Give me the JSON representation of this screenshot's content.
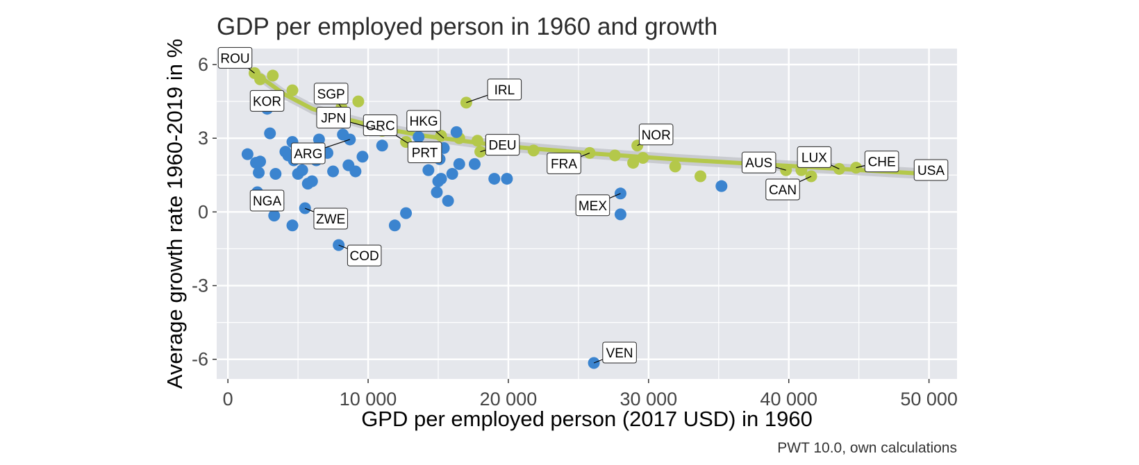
{
  "chart_data": {
    "type": "scatter",
    "title": "GDP per employed person in 1960 and growth",
    "xlabel": "GPD per employed person (2017 USD) in 1960",
    "ylabel": "Average growth rate 1960-2019 in %",
    "caption": "PWT 10.0, own calculations",
    "xlim": [
      -800,
      52000
    ],
    "ylim": [
      -6.8,
      6.65
    ],
    "xticks": [
      0,
      10000,
      20000,
      30000,
      40000,
      50000
    ],
    "xtick_labels": [
      "0",
      "10 000",
      "20 000",
      "30 000",
      "40 000",
      "50 000"
    ],
    "yticks": [
      -6,
      -3,
      0,
      3,
      6
    ],
    "ytick_labels": [
      "-6",
      "-3",
      "0",
      "3",
      "6"
    ],
    "grid": true,
    "legend": "none",
    "colors": {
      "panel": "#e5e7ec",
      "grid": "#ffffff",
      "frontier": "#b4c84a",
      "other": "#3b84cf",
      "smooth": "#b4c84a",
      "ribbon": "#c4c6cb"
    },
    "series": [
      {
        "color": "#b4c84a",
        "points": [
          [
            1900,
            5.65
          ],
          [
            2300,
            5.4
          ],
          [
            3200,
            5.55
          ],
          [
            2200,
            4.35
          ],
          [
            4600,
            4.95
          ],
          [
            8100,
            4.25
          ],
          [
            9300,
            4.5
          ],
          [
            11000,
            3.3
          ],
          [
            12700,
            2.85
          ],
          [
            17000,
            4.45
          ],
          [
            15200,
            3.1
          ],
          [
            16500,
            3.0
          ],
          [
            17800,
            2.9
          ],
          [
            18000,
            2.45
          ],
          [
            20100,
            2.65
          ],
          [
            21800,
            2.5
          ],
          [
            25800,
            2.4
          ],
          [
            27600,
            2.3
          ],
          [
            28900,
            2.0
          ],
          [
            29200,
            2.7
          ],
          [
            29600,
            2.2
          ],
          [
            31900,
            1.85
          ],
          [
            33700,
            1.45
          ],
          [
            39800,
            1.7
          ],
          [
            40900,
            1.7
          ],
          [
            41600,
            1.45
          ],
          [
            43600,
            1.75
          ],
          [
            44800,
            1.8
          ],
          [
            49600,
            1.65
          ]
        ]
      },
      {
        "color": "#3b84cf",
        "points": [
          [
            1400,
            2.35
          ],
          [
            2000,
            2.0
          ],
          [
            2300,
            2.05
          ],
          [
            2200,
            1.6
          ],
          [
            2100,
            0.8
          ],
          [
            2300,
            0.3
          ],
          [
            2800,
            4.2
          ],
          [
            3000,
            3.2
          ],
          [
            3300,
            -0.15
          ],
          [
            3400,
            1.55
          ],
          [
            3600,
            0.35
          ],
          [
            4100,
            2.45
          ],
          [
            4300,
            2.3
          ],
          [
            4600,
            2.85
          ],
          [
            4700,
            2.1
          ],
          [
            4600,
            -0.55
          ],
          [
            5000,
            1.55
          ],
          [
            5300,
            1.7
          ],
          [
            5500,
            0.15
          ],
          [
            5700,
            1.15
          ],
          [
            6000,
            1.25
          ],
          [
            6300,
            2.1
          ],
          [
            6500,
            2.95
          ],
          [
            7100,
            2.4
          ],
          [
            7500,
            1.65
          ],
          [
            7900,
            -1.35
          ],
          [
            8200,
            3.15
          ],
          [
            8700,
            2.95
          ],
          [
            8600,
            1.9
          ],
          [
            9100,
            1.65
          ],
          [
            9600,
            2.25
          ],
          [
            11000,
            2.7
          ],
          [
            11900,
            -0.55
          ],
          [
            12700,
            -0.05
          ],
          [
            13600,
            3.05
          ],
          [
            14300,
            1.7
          ],
          [
            15000,
            1.25
          ],
          [
            15200,
            1.35
          ],
          [
            14900,
            0.8
          ],
          [
            15100,
            2.15
          ],
          [
            15400,
            2.6
          ],
          [
            15700,
            0.45
          ],
          [
            16000,
            1.55
          ],
          [
            16300,
            3.25
          ],
          [
            16500,
            1.95
          ],
          [
            17600,
            1.95
          ],
          [
            19000,
            1.35
          ],
          [
            19900,
            1.35
          ],
          [
            26100,
            -6.15
          ],
          [
            28000,
            0.75
          ],
          [
            28000,
            -0.1
          ],
          [
            35200,
            1.05
          ]
        ]
      }
    ],
    "smooth_line": [
      [
        2300,
        5.5
      ],
      [
        4000,
        4.8
      ],
      [
        6000,
        4.2
      ],
      [
        8000,
        3.85
      ],
      [
        10000,
        3.55
      ],
      [
        12000,
        3.3
      ],
      [
        14000,
        3.1
      ],
      [
        16000,
        2.95
      ],
      [
        18000,
        2.8
      ],
      [
        20000,
        2.67
      ],
      [
        23000,
        2.52
      ],
      [
        26000,
        2.38
      ],
      [
        29000,
        2.26
      ],
      [
        32000,
        2.14
      ],
      [
        35000,
        2.04
      ],
      [
        38000,
        1.94
      ],
      [
        41000,
        1.84
      ],
      [
        44000,
        1.74
      ],
      [
        47000,
        1.64
      ],
      [
        49800,
        1.55
      ]
    ],
    "annotations": [
      {
        "label": "ROU",
        "x": 1900,
        "y": 5.65
      },
      {
        "label": "KOR",
        "x": 2200,
        "y": 4.35
      },
      {
        "label": "SGP",
        "x": 8100,
        "y": 4.25
      },
      {
        "label": "IRL",
        "x": 17000,
        "y": 4.45
      },
      {
        "label": "GRC",
        "x": 12700,
        "y": 2.85
      },
      {
        "label": "HKG",
        "x": 15400,
        "y": 3.0
      },
      {
        "label": "JPN",
        "x": 11000,
        "y": 3.3
      },
      {
        "label": "DEU",
        "x": 18000,
        "y": 2.45
      },
      {
        "label": "PRT",
        "x": 12700,
        "y": 2.85
      },
      {
        "label": "ARG",
        "x": 8700,
        "y": 2.95
      },
      {
        "label": "NGA",
        "x": 2100,
        "y": 0.8
      },
      {
        "label": "ZWE",
        "x": 5500,
        "y": 0.15
      },
      {
        "label": "COD",
        "x": 7900,
        "y": -1.35
      },
      {
        "label": "NOR",
        "x": 29200,
        "y": 2.7
      },
      {
        "label": "FRA",
        "x": 25800,
        "y": 2.4
      },
      {
        "label": "MEX",
        "x": 28000,
        "y": 0.75
      },
      {
        "label": "VEN",
        "x": 26100,
        "y": -6.15
      },
      {
        "label": "AUS",
        "x": 39800,
        "y": 1.7
      },
      {
        "label": "LUX",
        "x": 43600,
        "y": 1.75
      },
      {
        "label": "CHE",
        "x": 44800,
        "y": 1.8
      },
      {
        "label": "CAN",
        "x": 41600,
        "y": 1.45
      },
      {
        "label": "USA",
        "x": 49600,
        "y": 1.65
      }
    ]
  }
}
